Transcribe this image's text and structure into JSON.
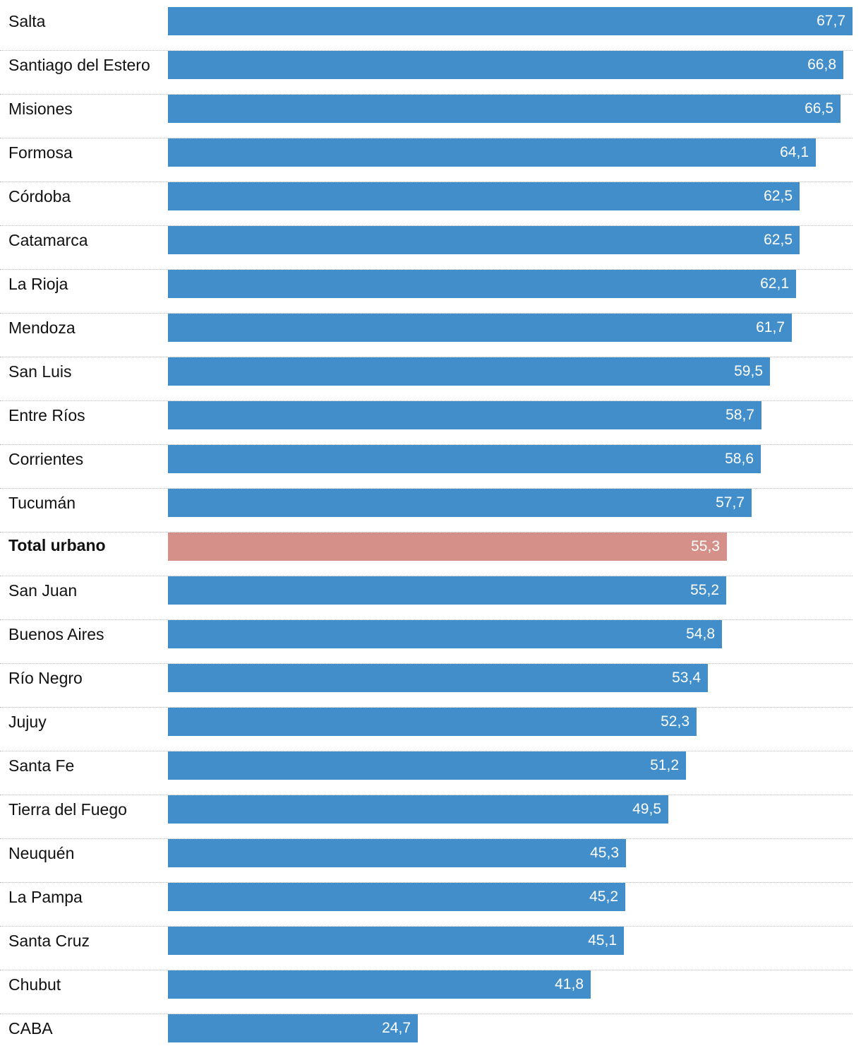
{
  "colors": {
    "bar": "#418ecb",
    "highlight": "#d6908a"
  },
  "chart_data": {
    "type": "bar",
    "orientation": "horizontal",
    "xlim": [
      0,
      67.7
    ],
    "categories": [
      "Salta",
      "Santiago del Estero",
      "Misiones",
      "Formosa",
      "Córdoba",
      "Catamarca",
      "La Rioja",
      "Mendoza",
      "San Luis",
      "Entre Ríos",
      "Corrientes",
      "Tucumán",
      "Total urbano",
      "San Juan",
      "Buenos Aires",
      "Río Negro",
      "Jujuy",
      "Santa Fe",
      "Tierra del Fuego",
      "Neuquén",
      "La Pampa",
      "Santa Cruz",
      "Chubut",
      "CABA"
    ],
    "values": [
      67.7,
      66.8,
      66.5,
      64.1,
      62.5,
      62.5,
      62.1,
      61.7,
      59.5,
      58.7,
      58.6,
      57.7,
      55.3,
      55.2,
      54.8,
      53.4,
      52.3,
      51.2,
      49.5,
      45.3,
      45.2,
      45.1,
      41.8,
      24.7
    ],
    "value_labels": [
      "67,7",
      "66,8",
      "66,5",
      "64,1",
      "62,5",
      "62,5",
      "62,1",
      "61,7",
      "59,5",
      "58,7",
      "58,6",
      "57,7",
      "55,3",
      "55,2",
      "54,8",
      "53,4",
      "52,3",
      "51,2",
      "49,5",
      "45,3",
      "45,2",
      "45,1",
      "41,8",
      "24,7"
    ],
    "highlight_category": "Total urbano"
  }
}
